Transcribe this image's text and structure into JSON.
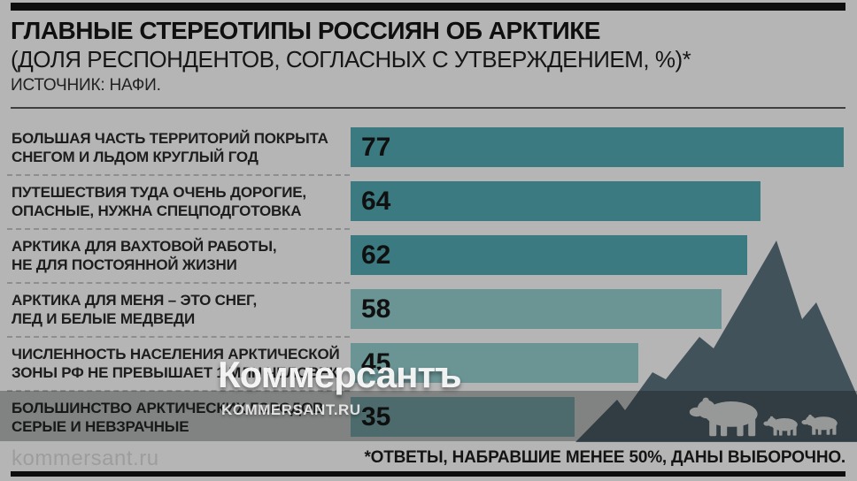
{
  "chart_data": {
    "type": "bar",
    "orientation": "horizontal",
    "title": "ГЛАВНЫЕ СТЕРЕОТИПЫ РОССИЯН ОБ АРКТИКЕ",
    "subtitle": "(ДОЛЯ РЕСПОНДЕНТОВ, СОГЛАСНЫХ С УТВЕРЖДЕНИЕМ, %)*",
    "source": "ИСТОЧНИК: НАФИ.",
    "footnote": "*ОТВЕТЫ, НАБРАВШИЕ МЕНЕЕ 50%, ДАНЫ ВЫБОРОЧНО.",
    "unit": "%",
    "value_range": [
      0,
      77
    ],
    "axis_hidden": true,
    "categories": [
      "БОЛЬШАЯ ЧАСТЬ ТЕРРИТОРИЙ ПОКРЫТА СНЕГОМ И ЛЬДОМ КРУГЛЫЙ ГОД",
      "ПУТЕШЕСТВИЯ ТУДА ОЧЕНЬ ДОРОГИЕ, ОПАСНЫЕ, НУЖНА СПЕЦПОДГОТОВКА",
      "АРКТИКА ДЛЯ ВАХТОВОЙ РАБОТЫ, НЕ ДЛЯ ПОСТОЯННОЙ ЖИЗНИ",
      "АРКТИКА ДЛЯ МЕНЯ – ЭТО СНЕГ, ЛЕД И БЕЛЫЕ МЕДВЕДИ",
      "ЧИСЛЕННОСТЬ НАСЕЛЕНИЯ АРКТИЧЕСКОЙ ЗОНЫ РФ НЕ ПРЕВЫШАЕТ 1 МЛН ЧЕЛОВЕК",
      "БОЛЬШИНСТВО АРКТИЧЕСКИХ ГОРОДОВ СЕРЫЕ И НЕВЗРАЧНЫЕ"
    ],
    "values": [
      77,
      64,
      62,
      58,
      45,
      35
    ],
    "rows": [
      {
        "label": [
          "БОЛЬШАЯ ЧАСТЬ ТЕРРИТОРИЙ ПОКРЫТА",
          "СНЕГОМ И ЛЬДОМ КРУГЛЫЙ ГОД"
        ],
        "value": 77,
        "color": "#3a7a80"
      },
      {
        "label": [
          "ПУТЕШЕСТВИЯ ТУДА ОЧЕНЬ ДОРОГИЕ,",
          "ОПАСНЫЕ, НУЖНА СПЕЦПОДГОТОВКА"
        ],
        "value": 64,
        "color": "#3a7a80"
      },
      {
        "label": [
          "АРКТИКА ДЛЯ ВАХТОВОЙ РАБОТЫ,",
          "НЕ ДЛЯ ПОСТОЯННОЙ ЖИЗНИ"
        ],
        "value": 62,
        "color": "#3a7a80"
      },
      {
        "label": [
          "АРКТИКА ДЛЯ МЕНЯ – ЭТО СНЕГ,",
          "ЛЕД И БЕЛЫЕ МЕДВЕДИ"
        ],
        "value": 58,
        "color": "#6b9495"
      },
      {
        "label": [
          "ЧИСЛЕННОСТЬ НАСЕЛЕНИЯ АРКТИЧЕСКОЙ",
          "ЗОНЫ РФ НЕ ПРЕВЫШАЕТ 1 МЛН ЧЕЛОВЕК"
        ],
        "value": 45,
        "color": "#6b9495"
      },
      {
        "label": [
          "БОЛЬШИНСТВО АРКТИЧЕСКИХ ГОРОДОВ",
          "СЕРЫЕ И НЕВЗРАЧНЫЕ"
        ],
        "value": 35,
        "color": "#6b9495"
      }
    ]
  },
  "watermark": {
    "logo_text": "Коммерсантъ",
    "site_text": "KOMMERSANT.RU"
  },
  "footer": {
    "site": "kommersant.ru"
  },
  "icons": {
    "illustration": "arctic-mountain-with-polar-bear-and-cubs"
  },
  "colors": {
    "background": "#b5b5b5",
    "bar_teal_dark": "#3a7a80",
    "bar_teal_light": "#6b9495",
    "mountain": "#42525a",
    "bears": "#d5d5d5",
    "black_bars": "#0e0e0e",
    "band_overlay": "rgba(10,12,14,0.30)"
  }
}
